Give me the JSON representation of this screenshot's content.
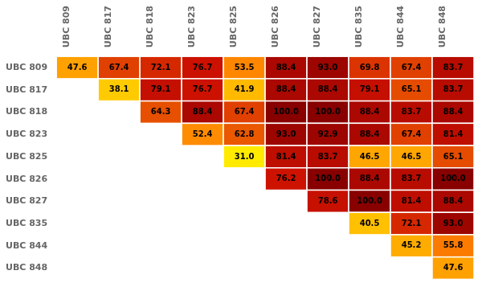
{
  "chart_data": {
    "type": "heatmap",
    "categories": [
      "UBC 809",
      "UBC 817",
      "UBC 818",
      "UBC 823",
      "UBC 825",
      "UBC 826",
      "UBC 827",
      "UBC 835",
      "UBC 844",
      "UBC 848"
    ],
    "values": [
      [
        47.6,
        67.4,
        72.1,
        76.7,
        53.5,
        88.4,
        93.0,
        69.8,
        67.4,
        83.7
      ],
      [
        null,
        38.1,
        79.1,
        76.7,
        41.9,
        88.4,
        88.4,
        79.1,
        65.1,
        83.7
      ],
      [
        null,
        null,
        64.3,
        88.4,
        67.4,
        100.0,
        100.0,
        88.4,
        83.7,
        88.4
      ],
      [
        null,
        null,
        null,
        52.4,
        62.8,
        93.0,
        92.9,
        88.4,
        67.4,
        81.4
      ],
      [
        null,
        null,
        null,
        null,
        31.0,
        81.4,
        83.7,
        46.5,
        46.5,
        65.1
      ],
      [
        null,
        null,
        null,
        null,
        null,
        76.2,
        100.0,
        88.4,
        83.7,
        100.0
      ],
      [
        null,
        null,
        null,
        null,
        null,
        null,
        78.6,
        100.0,
        81.4,
        88.4
      ],
      [
        null,
        null,
        null,
        null,
        null,
        null,
        null,
        40.5,
        72.1,
        93.0
      ],
      [
        null,
        null,
        null,
        null,
        null,
        null,
        null,
        null,
        45.2,
        55.8
      ],
      [
        null,
        null,
        null,
        null,
        null,
        null,
        null,
        null,
        null,
        47.6
      ]
    ],
    "value_labels": [
      [
        "47.6",
        "67.4",
        "72.1",
        "76.7",
        "53.5",
        "88.4",
        "93.0",
        "69.8",
        "67.4",
        "83.7"
      ],
      [
        null,
        "38.1",
        "79.1",
        "76.7",
        "41.9",
        "88.4",
        "88.4",
        "79.1",
        "65.1",
        "83.7"
      ],
      [
        null,
        null,
        "64.3",
        "88.4",
        "67.4",
        "100.0",
        "100.0",
        "88.4",
        "83.7",
        "88.4"
      ],
      [
        null,
        null,
        null,
        "52.4",
        "62.8",
        "93.0",
        "92.9",
        "88.4",
        "67.4",
        "81.4"
      ],
      [
        null,
        null,
        null,
        null,
        "31.0",
        "81.4",
        "83.7",
        "46.5",
        "46.5",
        "65.1"
      ],
      [
        null,
        null,
        null,
        null,
        null,
        "76.2",
        "100.0",
        "88.4",
        "83.7",
        "100.0"
      ],
      [
        null,
        null,
        null,
        null,
        null,
        null,
        "78.6",
        "100.0",
        "81.4",
        "88.4"
      ],
      [
        null,
        null,
        null,
        null,
        null,
        null,
        null,
        "40.5",
        "72.1",
        "93.0"
      ],
      [
        null,
        null,
        null,
        null,
        null,
        null,
        null,
        null,
        "45.2",
        "55.8"
      ],
      [
        null,
        null,
        null,
        null,
        null,
        null,
        null,
        null,
        null,
        "47.6"
      ]
    ],
    "colors": [
      "#ffee00",
      "#ff8800",
      "#cc1100",
      "#880000"
    ],
    "zlim": [
      30,
      100
    ],
    "data_labels": true,
    "grid": false
  }
}
